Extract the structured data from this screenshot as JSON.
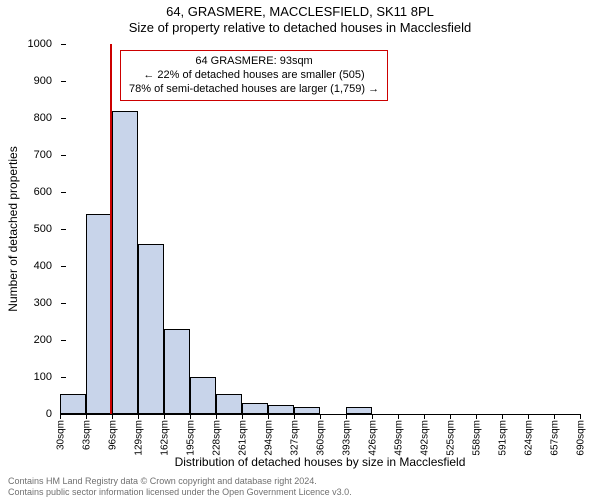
{
  "header": {
    "address": "64, GRASMERE, MACCLESFIELD, SK11 8PL",
    "title": "Size of property relative to detached houses in Macclesfield"
  },
  "axes": {
    "ylabel": "Number of detached properties",
    "xlabel": "Distribution of detached houses by size in Macclesfield",
    "ylim": [
      0,
      1000
    ],
    "ytick_step": 100,
    "ytick_fontsize": 11,
    "xtick_fontsize": 10,
    "label_fontsize": 12
  },
  "histogram": {
    "type": "histogram",
    "bin_labels": [
      "30sqm",
      "63sqm",
      "96sqm",
      "129sqm",
      "162sqm",
      "195sqm",
      "228sqm",
      "261sqm",
      "294sqm",
      "327sqm",
      "360sqm",
      "393sqm",
      "426sqm",
      "459sqm",
      "492sqm",
      "525sqm",
      "558sqm",
      "591sqm",
      "624sqm",
      "657sqm",
      "690sqm"
    ],
    "counts": [
      55,
      540,
      820,
      460,
      230,
      100,
      55,
      30,
      25,
      20,
      0,
      18,
      0,
      0,
      0,
      0,
      0,
      0,
      0,
      0
    ],
    "bar_fill": "#c8d4ea",
    "bar_border": "#000000",
    "background": "#ffffff"
  },
  "marker": {
    "value_sqm": 93,
    "range_sqm": [
      30,
      690
    ],
    "color": "#cc0000"
  },
  "annotation": {
    "line1": "64 GRASMERE: 93sqm",
    "line2": "← 22% of detached houses are smaller (505)",
    "line3": "78% of semi-detached houses are larger (1,759) →",
    "border_color": "#cc0000",
    "fontsize": 11
  },
  "footer": {
    "line1": "Contains HM Land Registry data © Crown copyright and database right 2024.",
    "line2": "Contains public sector information licensed under the Open Government Licence v3.0.",
    "color": "#707070",
    "fontsize": 9
  }
}
